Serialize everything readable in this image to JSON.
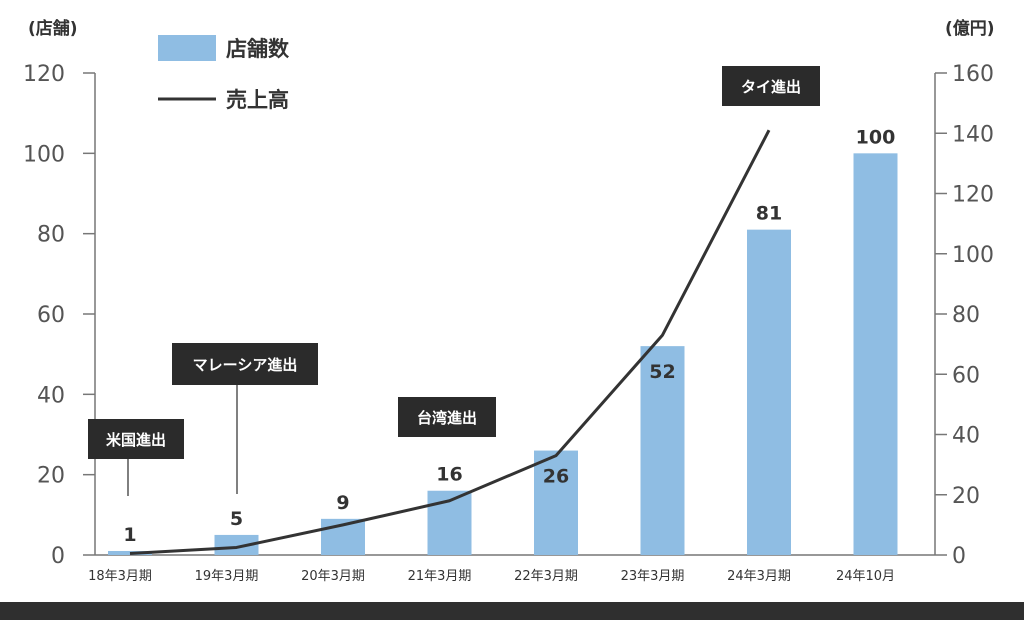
{
  "chart_data": {
    "type": "bar",
    "categories": [
      "18年3月期",
      "19年3月期",
      "20年3月期",
      "21年3月期",
      "22年3月期",
      "23年3月期",
      "24年3月期",
      "24年10月"
    ],
    "series": [
      {
        "name": "店舗数",
        "type": "bar",
        "axis": "left",
        "values": [
          1,
          5,
          9,
          16,
          26,
          52,
          81,
          100
        ]
      },
      {
        "name": "売上高",
        "type": "line",
        "axis": "right",
        "values": [
          0.5,
          2.5,
          10,
          18,
          33,
          73,
          141,
          null
        ]
      }
    ],
    "left_axis_unit": "(店舗)",
    "right_axis_unit": "(億円)",
    "ylim_left": [
      0,
      120
    ],
    "ylim_right": [
      0,
      160
    ],
    "yticks_left": [
      0,
      20,
      40,
      60,
      80,
      100,
      120
    ],
    "yticks_right": [
      0,
      20,
      40,
      60,
      80,
      100,
      120,
      140,
      160
    ],
    "annotations": [
      {
        "text": "米国進出",
        "category": "18年3月期"
      },
      {
        "text": "マレーシア進出",
        "category": "19年3月期"
      },
      {
        "text": "台湾進出",
        "category": "21年3月期"
      },
      {
        "text": "タイ進出",
        "category": "24年3月期"
      }
    ],
    "legend_position": "top-left",
    "grid": false,
    "colors": {
      "bar": "#8fbde3",
      "line": "#333333",
      "annotation_bg": "#2b2b2b"
    }
  }
}
